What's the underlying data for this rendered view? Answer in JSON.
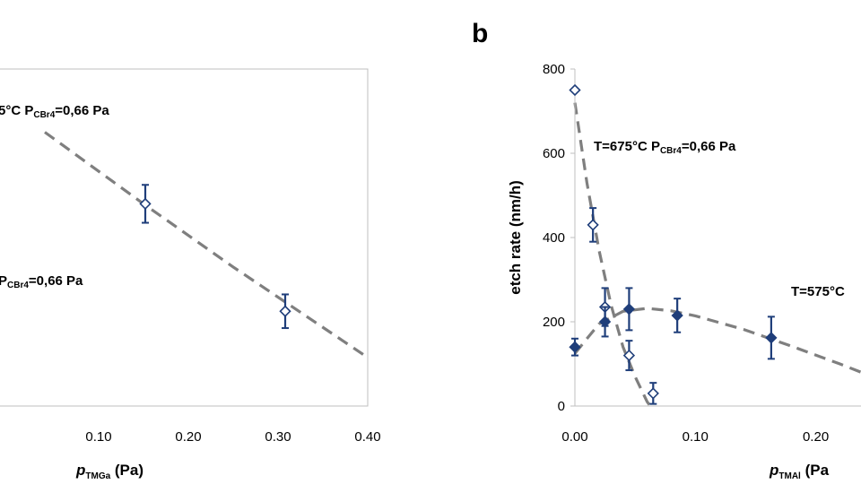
{
  "chart_data": [
    {
      "type": "scatter",
      "panel_label": "",
      "xlabel_main": "p",
      "xlabel_sub": "TMGa",
      "xlabel_unit": " (Pa)",
      "ylabel": "",
      "xlim": [
        -0.02,
        0.4
      ],
      "ylim": [
        0,
        800
      ],
      "x_ticks": [
        {
          "v": 0.1,
          "label": "0.10"
        },
        {
          "v": 0.2,
          "label": "0.20"
        },
        {
          "v": 0.3,
          "label": "0.30"
        },
        {
          "v": 0.4,
          "label": "0.40"
        }
      ],
      "y_ticks": [],
      "annotations": [
        {
          "id": "cond-top",
          "main": "5°C   P",
          "sub": "CBr4",
          "rest": "=0,66 Pa"
        },
        {
          "id": "cond-mid",
          "main": "P",
          "sub": "CBr4",
          "rest": "=0,66 Pa"
        }
      ],
      "series": [
        {
          "marker": "open-diamond",
          "points": [
            {
              "x": 0.152,
              "y": 480,
              "err": 45
            },
            {
              "x": 0.308,
              "y": 225,
              "err": 40
            }
          ]
        }
      ],
      "fits": [
        {
          "style": "dashed",
          "points": [
            [
              0.04,
              650
            ],
            [
              0.15,
              480
            ],
            [
              0.25,
              330
            ],
            [
              0.4,
              115
            ]
          ]
        }
      ]
    },
    {
      "type": "scatter",
      "panel_label": "b",
      "xlabel_main": "p",
      "xlabel_sub": "TMAl",
      "xlabel_unit": " (Pa",
      "ylabel": "etch rate (nm/h)",
      "xlim": [
        0,
        0.245
      ],
      "ylim": [
        0,
        800
      ],
      "x_ticks": [
        {
          "v": 0.0,
          "label": "0.00"
        },
        {
          "v": 0.1,
          "label": "0.10"
        },
        {
          "v": 0.2,
          "label": "0.20"
        }
      ],
      "y_ticks": [
        {
          "v": 0,
          "label": "0"
        },
        {
          "v": 200,
          "label": "200"
        },
        {
          "v": 400,
          "label": "400"
        },
        {
          "v": 600,
          "label": "600"
        },
        {
          "v": 800,
          "label": "800"
        }
      ],
      "annotations": [
        {
          "id": "cond-675",
          "main": "T=675°C   P",
          "sub": "CBr4",
          "rest": "=0,66 Pa"
        },
        {
          "id": "cond-575",
          "main": "T=575°C",
          "sub": "",
          "rest": ""
        }
      ],
      "series": [
        {
          "marker": "open-diamond",
          "points": [
            {
              "x": 0.0,
              "y": 750,
              "err": 0
            },
            {
              "x": 0.015,
              "y": 430,
              "err": 40
            },
            {
              "x": 0.025,
              "y": 235,
              "err": 45
            },
            {
              "x": 0.045,
              "y": 120,
              "err": 35
            },
            {
              "x": 0.065,
              "y": 30,
              "err": 25
            }
          ]
        },
        {
          "marker": "filled-diamond",
          "points": [
            {
              "x": 0.0,
              "y": 140,
              "err": 20
            },
            {
              "x": 0.025,
              "y": 200,
              "err": 35
            },
            {
              "x": 0.045,
              "y": 230,
              "err": 50
            },
            {
              "x": 0.085,
              "y": 215,
              "err": 40
            },
            {
              "x": 0.163,
              "y": 162,
              "err": 50
            }
          ]
        }
      ],
      "fits": [
        {
          "style": "dashed",
          "points": [
            [
              0.0,
              720
            ],
            [
              0.01,
              530
            ],
            [
              0.02,
              370
            ],
            [
              0.03,
              240
            ],
            [
              0.04,
              140
            ],
            [
              0.05,
              70
            ],
            [
              0.06,
              10
            ],
            [
              0.064,
              -5
            ]
          ]
        },
        {
          "style": "dashed",
          "points": [
            [
              0.0,
              125
            ],
            [
              0.02,
              195
            ],
            [
              0.04,
              225
            ],
            [
              0.06,
              232
            ],
            [
              0.08,
              226
            ],
            [
              0.1,
              214
            ],
            [
              0.14,
              182
            ],
            [
              0.18,
              142
            ],
            [
              0.22,
              100
            ],
            [
              0.245,
              72
            ]
          ]
        }
      ]
    }
  ]
}
